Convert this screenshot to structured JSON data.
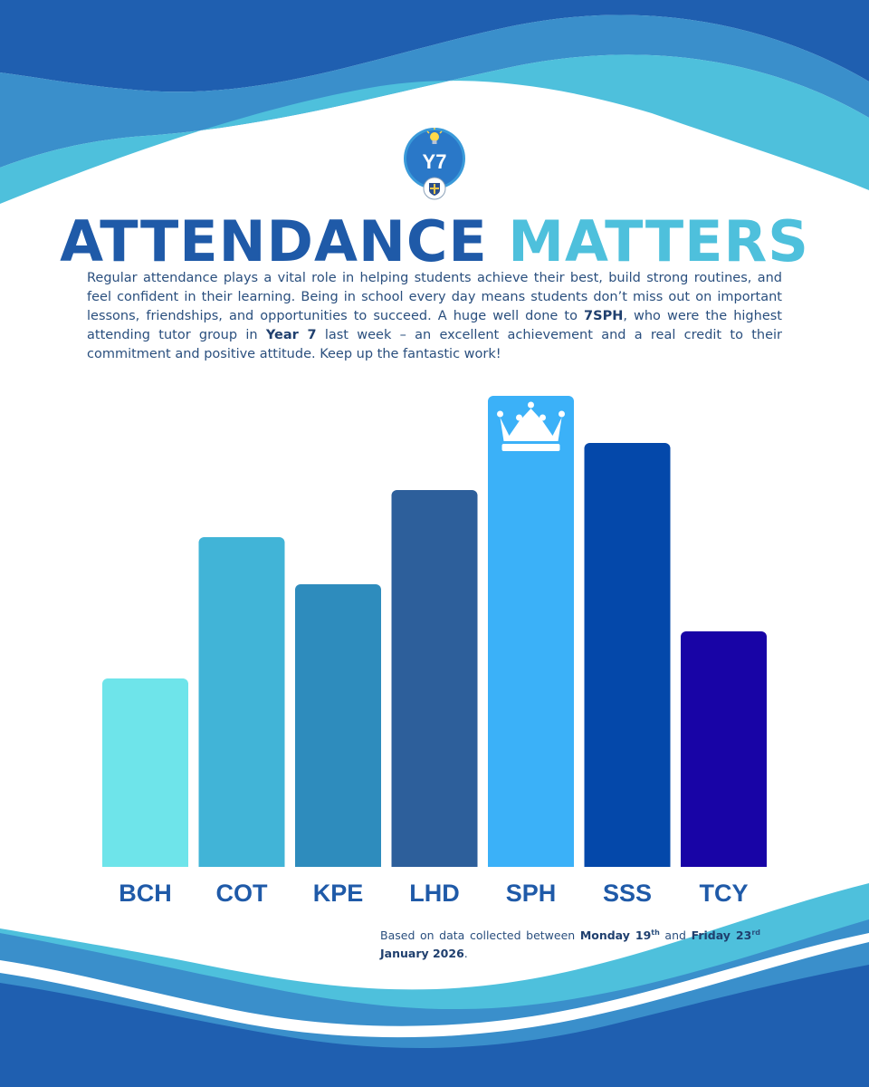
{
  "logo": {
    "text": "Y7"
  },
  "title": {
    "part1": "ATTENDANCE",
    "part2": "MATTERS"
  },
  "intro": {
    "p1": "Regular attendance plays a vital role in helping students achieve their best, build strong routines, and feel confident in their learning. Being in school every day means students don’t miss out on important lessons, friendships, and opportunities to succeed. A huge well done to ",
    "highlight_group": "7SPH",
    "p2": ", who were the highest attending tutor group in ",
    "highlight_year": "Year 7",
    "p3": " last week – an excellent achievement and a real credit to their commitment and positive attitude. Keep up the fantastic work!"
  },
  "chart_data": {
    "type": "bar",
    "title": "ATTENDANCE MATTERS",
    "xlabel": "",
    "ylabel": "",
    "categories": [
      "BCH",
      "COT",
      "KPE",
      "LHD",
      "SPH",
      "SSS",
      "TCY"
    ],
    "values": [
      40,
      70,
      60,
      80,
      100,
      90,
      50
    ],
    "ylim": [
      0,
      100
    ],
    "colors": [
      "#6ee4ea",
      "#41b4d7",
      "#2e8cbd",
      "#2d5f9b",
      "#3bb1f8",
      "#0448aa",
      "#1804a6"
    ],
    "highlight_category": "SPH",
    "annotation": "crown-icon on SPH",
    "grid": false
  },
  "footnote": {
    "prefix": "Based on data collected between ",
    "start_day": "Monday 19",
    "start_suffix": "th",
    "mid": " and ",
    "end_day": "Friday 23",
    "end_suffix": "rd",
    "end_month_year": "January 2026",
    "suffix": "."
  },
  "colors": {
    "dark_blue": "#1f5aa8",
    "mid_blue": "#3a8fcb",
    "light_blue": "#4ec0dc",
    "text": "#2a4f7e"
  }
}
